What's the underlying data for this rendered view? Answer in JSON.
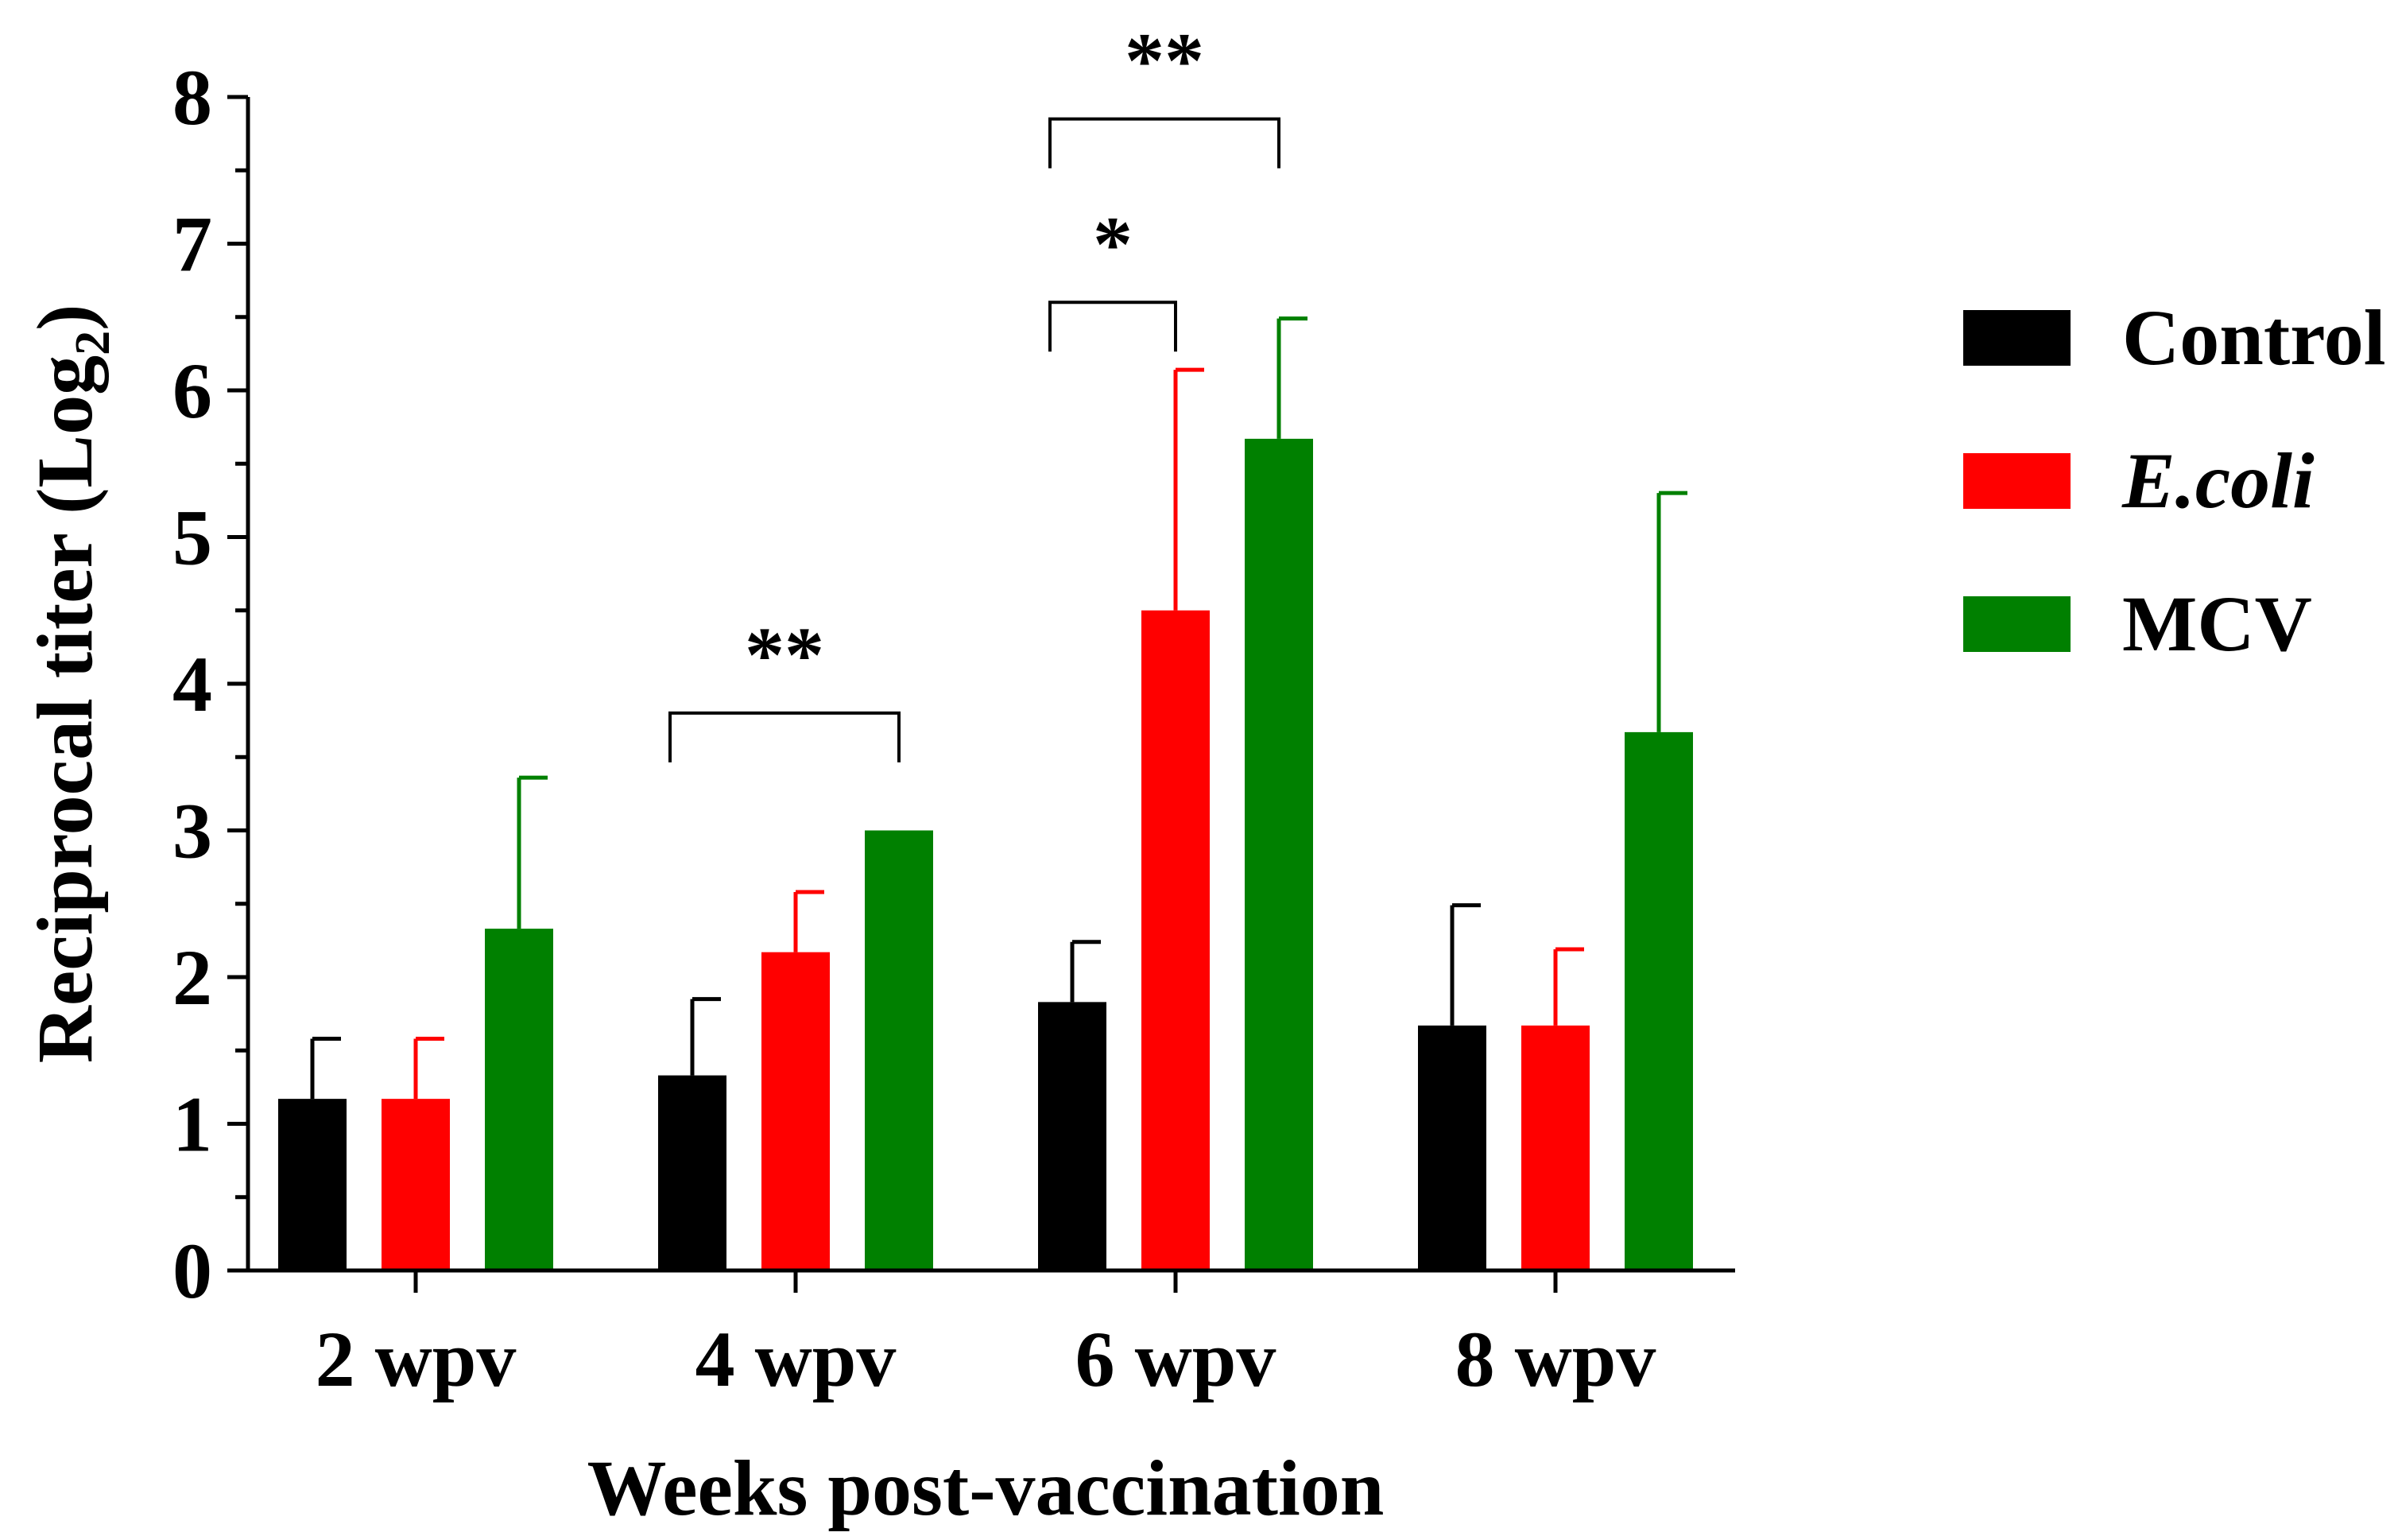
{
  "chart_data": {
    "type": "bar",
    "xlabel": "Weeks post-vaccination",
    "ylabel_main": "Reciprocal titer (Log",
    "ylabel_sub": "2",
    "ylabel_close": ")",
    "ylim": [
      0,
      8
    ],
    "yticks": [
      "0",
      "1",
      "2",
      "3",
      "4",
      "5",
      "6",
      "7",
      "8"
    ],
    "categories": [
      "2 wpv",
      "4 wpv",
      "6 wpv",
      "8 wpv"
    ],
    "series": [
      {
        "name": "Control",
        "italic": false,
        "color": "#000000",
        "values": [
          1.17,
          1.33,
          1.83,
          1.67
        ],
        "errors": [
          0.41,
          0.52,
          0.41,
          0.82
        ]
      },
      {
        "name": "E.coli",
        "italic": true,
        "color": "#ff0000",
        "values": [
          1.17,
          2.17,
          4.5,
          1.67
        ],
        "errors": [
          0.41,
          0.41,
          1.64,
          0.52
        ]
      },
      {
        "name": "MCV",
        "italic": false,
        "color": "#008000",
        "values": [
          2.33,
          3.0,
          5.67,
          3.67
        ],
        "errors": [
          1.03,
          0.0,
          0.82,
          1.63
        ]
      }
    ],
    "significance": [
      {
        "label": "**",
        "category": 1,
        "from_series": 0,
        "to_series": 2,
        "level": 3.8
      },
      {
        "label": "*",
        "category": 2,
        "from_series": 0,
        "to_series": 1,
        "level": 6.6
      },
      {
        "label": "**",
        "category": 2,
        "from_series": 0,
        "to_series": 2,
        "level": 7.85
      }
    ],
    "legend_position": "right"
  }
}
